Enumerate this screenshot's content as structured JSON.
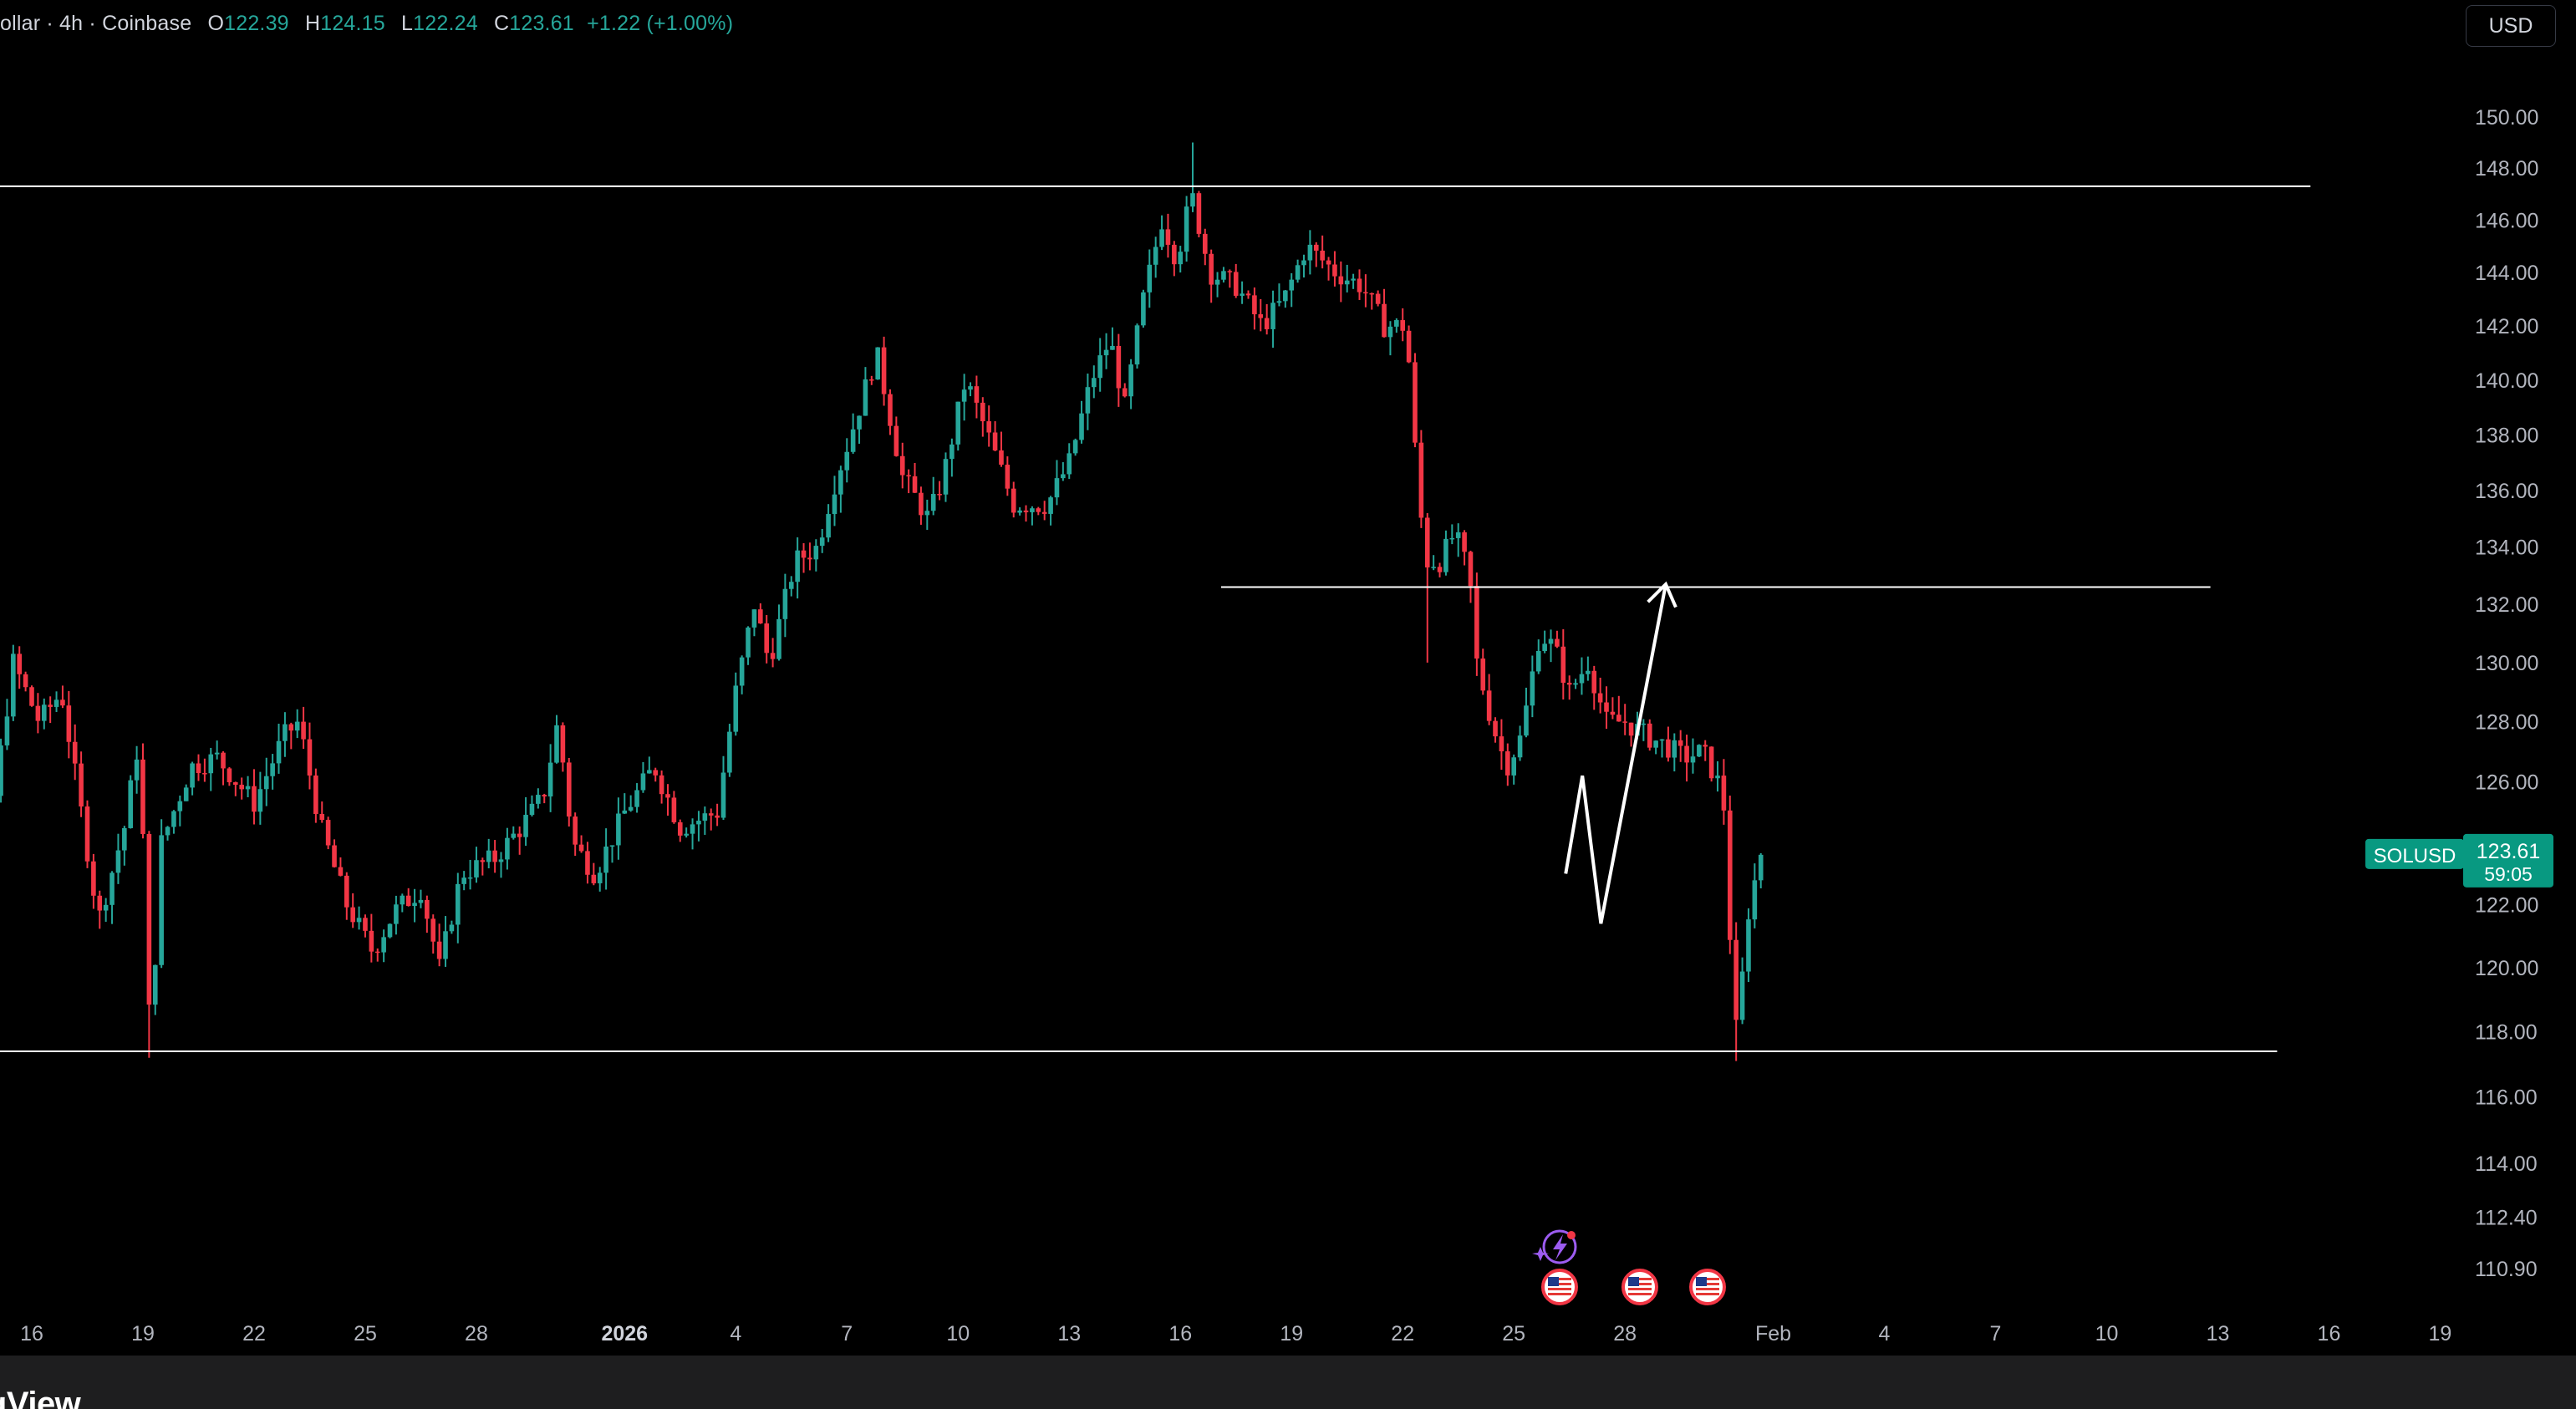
{
  "legend": {
    "symbol_text": "ollar · 4h · Coinbase",
    "o_label": "O",
    "o_value": "122.39",
    "h_label": "H",
    "h_value": "124.15",
    "l_label": "L",
    "l_value": "122.24",
    "c_label": "C",
    "c_value": "123.61",
    "change": "+1.22 (+1.00%)"
  },
  "currency_button": "USD",
  "footer_logo": "ngView",
  "price_tag": {
    "symbol": "SOLUSD",
    "price": "123.61",
    "countdown": "59:05",
    "value": 123.61
  },
  "colors": {
    "up": "#26a69a",
    "down": "#f23645",
    "tag_bg": "#089981",
    "lines": "#ffffff",
    "background": "#000000"
  },
  "icons": [
    "lightning-event-icon",
    "us-flag-icon",
    "us-flag-icon",
    "us-flag-icon"
  ],
  "chart_data": {
    "type": "candlestick",
    "timeframe": "4h",
    "x_tick_labels": [
      "16",
      "19",
      "22",
      "25",
      "28",
      "2026",
      "4",
      "7",
      "10",
      "13",
      "16",
      "19",
      "22",
      "25",
      "28",
      "Feb",
      "4",
      "7",
      "10",
      "13",
      "16",
      "19"
    ],
    "x_tick_days": [
      16,
      19,
      22,
      25,
      28,
      32,
      35,
      38,
      41,
      44,
      47,
      50,
      53,
      56,
      59,
      63,
      66,
      69,
      72,
      75,
      78,
      81
    ],
    "y_tick_labels": [
      "150.00",
      "148.00",
      "146.00",
      "144.00",
      "142.00",
      "140.00",
      "138.00",
      "136.00",
      "134.00",
      "132.00",
      "130.00",
      "128.00",
      "126.00",
      "124.00",
      "122.00",
      "120.00",
      "118.00",
      "116.00",
      "114.00",
      "112.40",
      "110.90"
    ],
    "y_scale": "log",
    "ylim": [
      109.5,
      152.5
    ],
    "horizontal_lines": [
      {
        "price": 147.3,
        "from_day": 13,
        "to_day": 77.5
      },
      {
        "price": 132.6,
        "from_day": 48.1,
        "to_day": 74.8
      },
      {
        "price": 117.4,
        "from_day": 13,
        "to_day": 76.6
      }
    ],
    "projection_path": [
      {
        "day": 57.4,
        "price": 123.0
      },
      {
        "day": 57.85,
        "price": 126.2
      },
      {
        "day": 58.35,
        "price": 121.4
      },
      {
        "day": 60.1,
        "price": 132.7
      }
    ],
    "anchors": [
      {
        "day": 13.0,
        "price": 133.0
      },
      {
        "day": 13.8,
        "price": 127.0
      },
      {
        "day": 14.4,
        "price": 130.0
      },
      {
        "day": 15.0,
        "price": 125.5
      },
      {
        "day": 15.5,
        "price": 130.0
      },
      {
        "day": 16.2,
        "price": 128.0
      },
      {
        "day": 16.8,
        "price": 129.0
      },
      {
        "day": 17.8,
        "price": 121.5
      },
      {
        "day": 18.5,
        "price": 124.5
      },
      {
        "day": 18.9,
        "price": 127.5
      },
      {
        "day": 19.2,
        "price": 117.5
      },
      {
        "day": 19.5,
        "price": 124.0
      },
      {
        "day": 20.3,
        "price": 126.5
      },
      {
        "day": 21.0,
        "price": 126.8
      },
      {
        "day": 22.0,
        "price": 125.3
      },
      {
        "day": 22.8,
        "price": 127.5
      },
      {
        "day": 23.2,
        "price": 128.0
      },
      {
        "day": 23.8,
        "price": 124.5
      },
      {
        "day": 24.5,
        "price": 122.0
      },
      {
        "day": 25.2,
        "price": 120.5
      },
      {
        "day": 25.8,
        "price": 121.8
      },
      {
        "day": 26.5,
        "price": 122.5
      },
      {
        "day": 27.0,
        "price": 120.0
      },
      {
        "day": 27.6,
        "price": 123.0
      },
      {
        "day": 28.5,
        "price": 123.5
      },
      {
        "day": 29.2,
        "price": 124.5
      },
      {
        "day": 29.8,
        "price": 125.5
      },
      {
        "day": 30.2,
        "price": 128.0
      },
      {
        "day": 30.6,
        "price": 124.0
      },
      {
        "day": 31.2,
        "price": 123.0
      },
      {
        "day": 32.0,
        "price": 125.0
      },
      {
        "day": 32.8,
        "price": 126.5
      },
      {
        "day": 33.5,
        "price": 124.5
      },
      {
        "day": 34.5,
        "price": 125.0
      },
      {
        "day": 35.0,
        "price": 129.0
      },
      {
        "day": 35.5,
        "price": 132.0
      },
      {
        "day": 35.9,
        "price": 130.0
      },
      {
        "day": 36.6,
        "price": 133.5
      },
      {
        "day": 37.2,
        "price": 134.0
      },
      {
        "day": 37.6,
        "price": 136.0
      },
      {
        "day": 38.1,
        "price": 138.0
      },
      {
        "day": 38.8,
        "price": 141.0
      },
      {
        "day": 39.5,
        "price": 136.5
      },
      {
        "day": 40.2,
        "price": 135.0
      },
      {
        "day": 40.6,
        "price": 136.5
      },
      {
        "day": 41.2,
        "price": 140.0
      },
      {
        "day": 41.8,
        "price": 138.0
      },
      {
        "day": 42.5,
        "price": 135.5
      },
      {
        "day": 43.4,
        "price": 135.5
      },
      {
        "day": 44.0,
        "price": 137.0
      },
      {
        "day": 44.6,
        "price": 140.0
      },
      {
        "day": 45.1,
        "price": 141.5
      },
      {
        "day": 45.5,
        "price": 139.0
      },
      {
        "day": 46.0,
        "price": 143.0
      },
      {
        "day": 46.5,
        "price": 146.0
      },
      {
        "day": 46.9,
        "price": 144.5
      },
      {
        "day": 47.3,
        "price": 147.0
      },
      {
        "day": 47.8,
        "price": 144.0
      },
      {
        "day": 48.5,
        "price": 143.5
      },
      {
        "day": 49.2,
        "price": 142.0
      },
      {
        "day": 49.8,
        "price": 143.0
      },
      {
        "day": 50.4,
        "price": 145.0
      },
      {
        "day": 51.2,
        "price": 144.0
      },
      {
        "day": 51.9,
        "price": 143.5
      },
      {
        "day": 52.5,
        "price": 142.0
      },
      {
        "day": 53.1,
        "price": 142.0
      },
      {
        "day": 53.3,
        "price": 138.0
      },
      {
        "day": 53.6,
        "price": 133.5
      },
      {
        "day": 54.0,
        "price": 133.5
      },
      {
        "day": 54.4,
        "price": 134.5
      },
      {
        "day": 54.8,
        "price": 133.0
      },
      {
        "day": 55.0,
        "price": 130.0
      },
      {
        "day": 55.4,
        "price": 128.0
      },
      {
        "day": 55.8,
        "price": 126.5
      },
      {
        "day": 56.2,
        "price": 127.5
      },
      {
        "day": 56.7,
        "price": 131.0
      },
      {
        "day": 57.1,
        "price": 130.5
      },
      {
        "day": 57.5,
        "price": 129.0
      },
      {
        "day": 58.0,
        "price": 130.0
      },
      {
        "day": 58.5,
        "price": 128.0
      },
      {
        "day": 59.0,
        "price": 128.0
      },
      {
        "day": 59.6,
        "price": 127.5
      },
      {
        "day": 60.1,
        "price": 127.2
      },
      {
        "day": 60.6,
        "price": 126.8
      },
      {
        "day": 61.1,
        "price": 127.0
      },
      {
        "day": 61.5,
        "price": 126.0
      },
      {
        "day": 61.7,
        "price": 125.0
      },
      {
        "day": 61.95,
        "price": 117.6
      },
      {
        "day": 62.15,
        "price": 119.5
      },
      {
        "day": 62.35,
        "price": 122.0
      },
      {
        "day": 62.55,
        "price": 123.0
      },
      {
        "day": 62.7,
        "price": 123.61
      }
    ],
    "last_close": 123.61
  }
}
